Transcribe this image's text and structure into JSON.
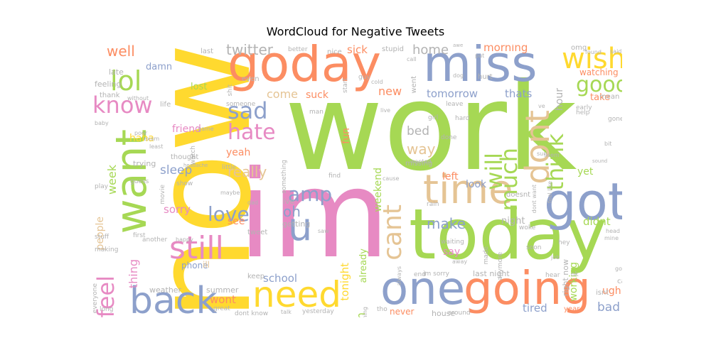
{
  "title": "WordCloud for Negative Tweets",
  "colors": {
    "green": "#A6D854",
    "yellow": "#FFD92F",
    "pink": "#E78AC3",
    "orange": "#FC8D62",
    "blue": "#8DA0CB",
    "teal": "#66C2A5",
    "tan": "#E5C494",
    "gray": "#B3B3B3"
  },
  "words": {
    "work": "work",
    "im": "im",
    "now": "now",
    "today": "today",
    "goday": "goday",
    "miss": "miss",
    "got": "got",
    "going": "going",
    "one": "one",
    "want": "want",
    "time": "time",
    "back": "back",
    "need": "need",
    "dont": "dont",
    "still": "still",
    "u": "u",
    "wish": "wish",
    "lol": "lol",
    "know": "know",
    "good": "good",
    "sad": "sad",
    "hate": "hate",
    "feel": "feel",
    "love": "love",
    "think": "think",
    "much": "much",
    "will": "will",
    "amp": "amp",
    "cant": "cant",
    "really": "really",
    "sleep": "sleep",
    "oh": "oh",
    "make": "make",
    "well": "well",
    "twitter": "twitter",
    "home": "home",
    "morning": "morning",
    "tomorrow": "tomorrow",
    "thats": "thats",
    "sick": "sick",
    "come": "come",
    "suck": "suck",
    "new": "new",
    "bed": "bed",
    "way": "way",
    "weekend": "weekend",
    "fun": "fun",
    "hope": "hope",
    "yet": "yet",
    "didnt": "didnt",
    "bad": "bad",
    "ugh": "ugh",
    "tired": "tired",
    "school": "school",
    "wont": "wont",
    "see": "see",
    "sorry": "sorry",
    "yeah": "yeah",
    "friend": "friend",
    "haha": "haha",
    "damn": "damn",
    "lost": "lost",
    "week": "week",
    "thing": "thing",
    "though": "though",
    "tonight": "tonight",
    "already": "already",
    "look": "look",
    "night": "night",
    "left": "left",
    "say": "say",
    "working": "working",
    "hour": "hour",
    "watching": "watching",
    "take": "take",
    "feeling": "feeling",
    "late": "late",
    "thank": "thank",
    "life": "life",
    "phone": "phone",
    "ill": "ill",
    "weather": "weather",
    "summer": "summer",
    "people": "people",
    "last_night": "last night",
    "right_now": "right now",
    "house": "house",
    "never": "never",
    "tweet": "tweet",
    "keep": "keep",
    "getting": "getting",
    "ive": "ive",
    "yesterday": "yesterday",
    "around": "around",
    "year": "year",
    "car": "car",
    "lot": "lot",
    "isnt": "isnt",
    "omg": "omg",
    "said": "said",
    "found": "found",
    "awe": "awe",
    "put": "put",
    "better": "better",
    "nice": "nice",
    "stupid": "stupid",
    "last": "last",
    "call": "call",
    "start": "start",
    "went": "went",
    "dog": "dog",
    "hurt": "hurt",
    "mean": "mean",
    "early": "early",
    "help": "help",
    "gone": "gone",
    "bit": "bit",
    "sound": "sound",
    "missed": "missed",
    "ur": "ur",
    "old": "old",
    "head": "head",
    "mine": "mine",
    "hot": "hot",
    "hey": "hey",
    "job": "job",
    "hear": "hear",
    "ok": "ok",
    "gonna": "gonna",
    "anything": "anything",
    "even": "even",
    "shit": "shit",
    "someone": "someone",
    "guy": "guy",
    "cold": "cold",
    "live": "live",
    "man": "man",
    "leave": "leave",
    "hard": "hard",
    "done": "done",
    "girl": "girl",
    "missing": "missing",
    "wanted": "wanted",
    "something": "something",
    "thought": "thought",
    "headache": "headache",
    "little": "little",
    "show": "show",
    "find": "find",
    "cause": "cause",
    "rain": "rain",
    "doesnt": "doesnt",
    "woke": "woke",
    "waiting": "waiting",
    "soon": "soon",
    "anymore": "anymore",
    "made": "made",
    "always": "always",
    "end": "end",
    "im_sorry": "im sorry",
    "away": "away",
    "tho": "tho",
    "nothing": "nothing",
    "talk": "talk",
    "dont_know": "dont know",
    "great": "great",
    "everyone": "everyone",
    "long": "long",
    "making": "making",
    "happy": "happy",
    "first": "first",
    "another": "another",
    "stuff": "stuff",
    "movie": "movie",
    "play": "play",
    "guess": "guess",
    "trying": "trying",
    "least": "least",
    "poor": "poor",
    "exam": "exam",
    "baby": "baby",
    "without": "without",
    "maybe": "maybe",
    "dad": "dad",
    "saw": "saw",
    "game": "game",
    "watch": "watch",
    "seem": "seem",
    "sun": "sun",
    "ve": "ve",
    "dont_want": "dont want",
    "feel_like": "feel like"
  }
}
